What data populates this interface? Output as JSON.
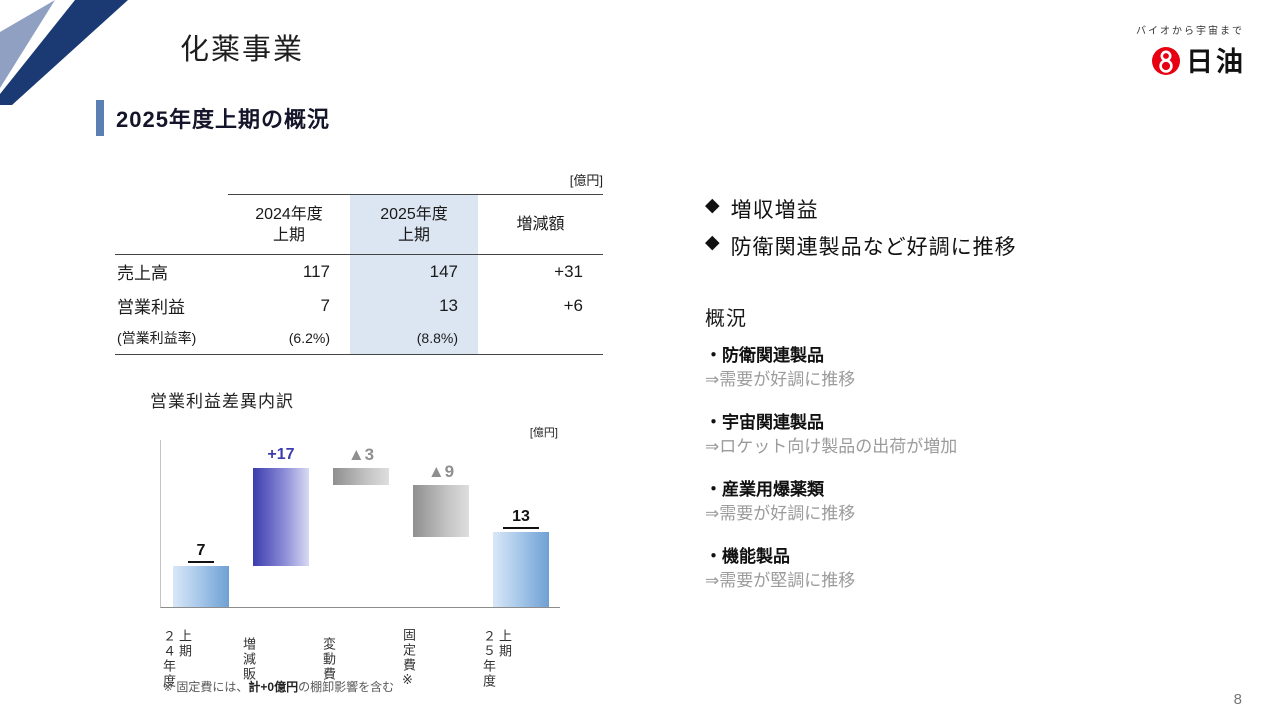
{
  "header": {
    "title": "化薬事業",
    "logo_tagline": "バイオから宇宙まで",
    "logo_text": "日油"
  },
  "section": {
    "heading": "2025年度上期の概況"
  },
  "table": {
    "unit": "[億円]",
    "headers": {
      "col1_line1": "2024年度",
      "col1_line2": "上期",
      "col2_line1": "2025年度",
      "col2_line2": "上期",
      "col3": "増減額"
    },
    "rows": [
      {
        "label": "売上高",
        "fy2024": "117",
        "fy2025": "147",
        "change": "+31"
      },
      {
        "label": "営業利益",
        "fy2024": "7",
        "fy2025": "13",
        "change": "+6"
      },
      {
        "label": "(営業利益率)",
        "fy2024": "(6.2%)",
        "fy2025": "(8.8%)",
        "change": ""
      }
    ]
  },
  "chart_data": {
    "type": "bar",
    "subtype": "waterfall",
    "title": "営業利益差異内訳",
    "unit": "[億円]",
    "ylim": [
      0,
      24
    ],
    "bars": [
      {
        "category_lines": [
          "２４年度",
          "上期"
        ],
        "label": "7",
        "start": 0,
        "end": 7,
        "style": "blue",
        "total": true
      },
      {
        "category_lines": [
          "増減販"
        ],
        "label": "+17",
        "start": 7,
        "end": 24,
        "style": "purple",
        "total": false
      },
      {
        "category_lines": [
          "変動費"
        ],
        "label": "▲3",
        "start": 24,
        "end": 21,
        "style": "gray",
        "total": false
      },
      {
        "category_lines": [
          "固定費※"
        ],
        "label": "▲9",
        "start": 21,
        "end": 12,
        "style": "gray",
        "total": false
      },
      {
        "category_lines": [
          "２５年度",
          "上期"
        ],
        "label": "13",
        "start": 0,
        "end": 13,
        "style": "blue",
        "total": true
      }
    ],
    "footnote": {
      "prefix": "※ 固定費には、",
      "bold": "計+0億円",
      "suffix": "の棚卸影響を含む"
    }
  },
  "highlights": {
    "bullet": "◆",
    "items": [
      "増収増益",
      "防衛関連製品など好調に推移"
    ]
  },
  "overview": {
    "heading": "概況",
    "items": [
      {
        "title": "・防衛関連製品",
        "desc": "⇒需要が好調に推移"
      },
      {
        "title": "・宇宙関連製品",
        "desc": "⇒ロケット向け製品の出荷が増加"
      },
      {
        "title": "・産業用爆薬類",
        "desc": "⇒需要が好調に推移"
      },
      {
        "title": "・機能製品",
        "desc": "⇒需要が堅調に推移"
      }
    ]
  },
  "page_number": "8",
  "colors": {
    "accent_blue": "#5b7fb3",
    "table_highlight": "#dce6f2",
    "bar_blue": "#6fa0d4",
    "bar_purple": "#3c3cae",
    "bar_gray": "#8f8f8f",
    "logo_red": "#e60012"
  }
}
